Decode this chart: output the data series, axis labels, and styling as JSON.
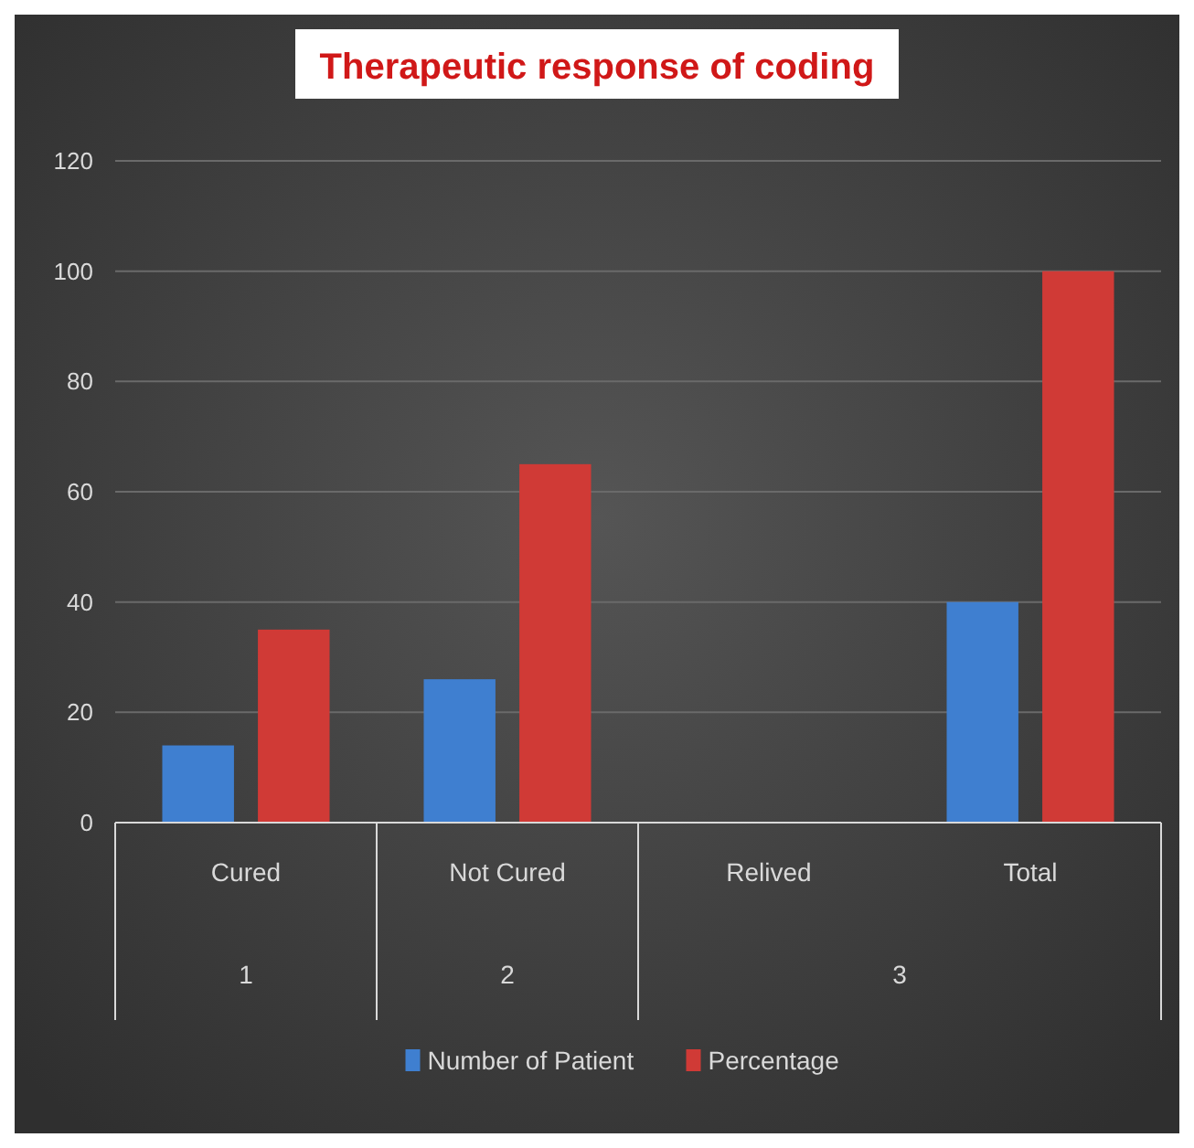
{
  "chart_data": {
    "type": "bar",
    "title": "Therapeutic response of coding",
    "categories": [
      "Cured",
      "Not Cured",
      "Relived",
      "Total"
    ],
    "series": [
      {
        "name": "Number of Patient",
        "color": "#3f7fd0",
        "values": [
          14,
          26,
          null,
          40
        ]
      },
      {
        "name": "Percentage",
        "color": "#d03a36",
        "values": [
          35,
          65,
          null,
          100
        ]
      }
    ],
    "ylim": [
      0,
      120
    ],
    "yticks": [
      0,
      20,
      40,
      60,
      80,
      100,
      120
    ],
    "grid": "y",
    "legend": "bottom",
    "annotations": [
      "1",
      "2",
      "3"
    ]
  }
}
